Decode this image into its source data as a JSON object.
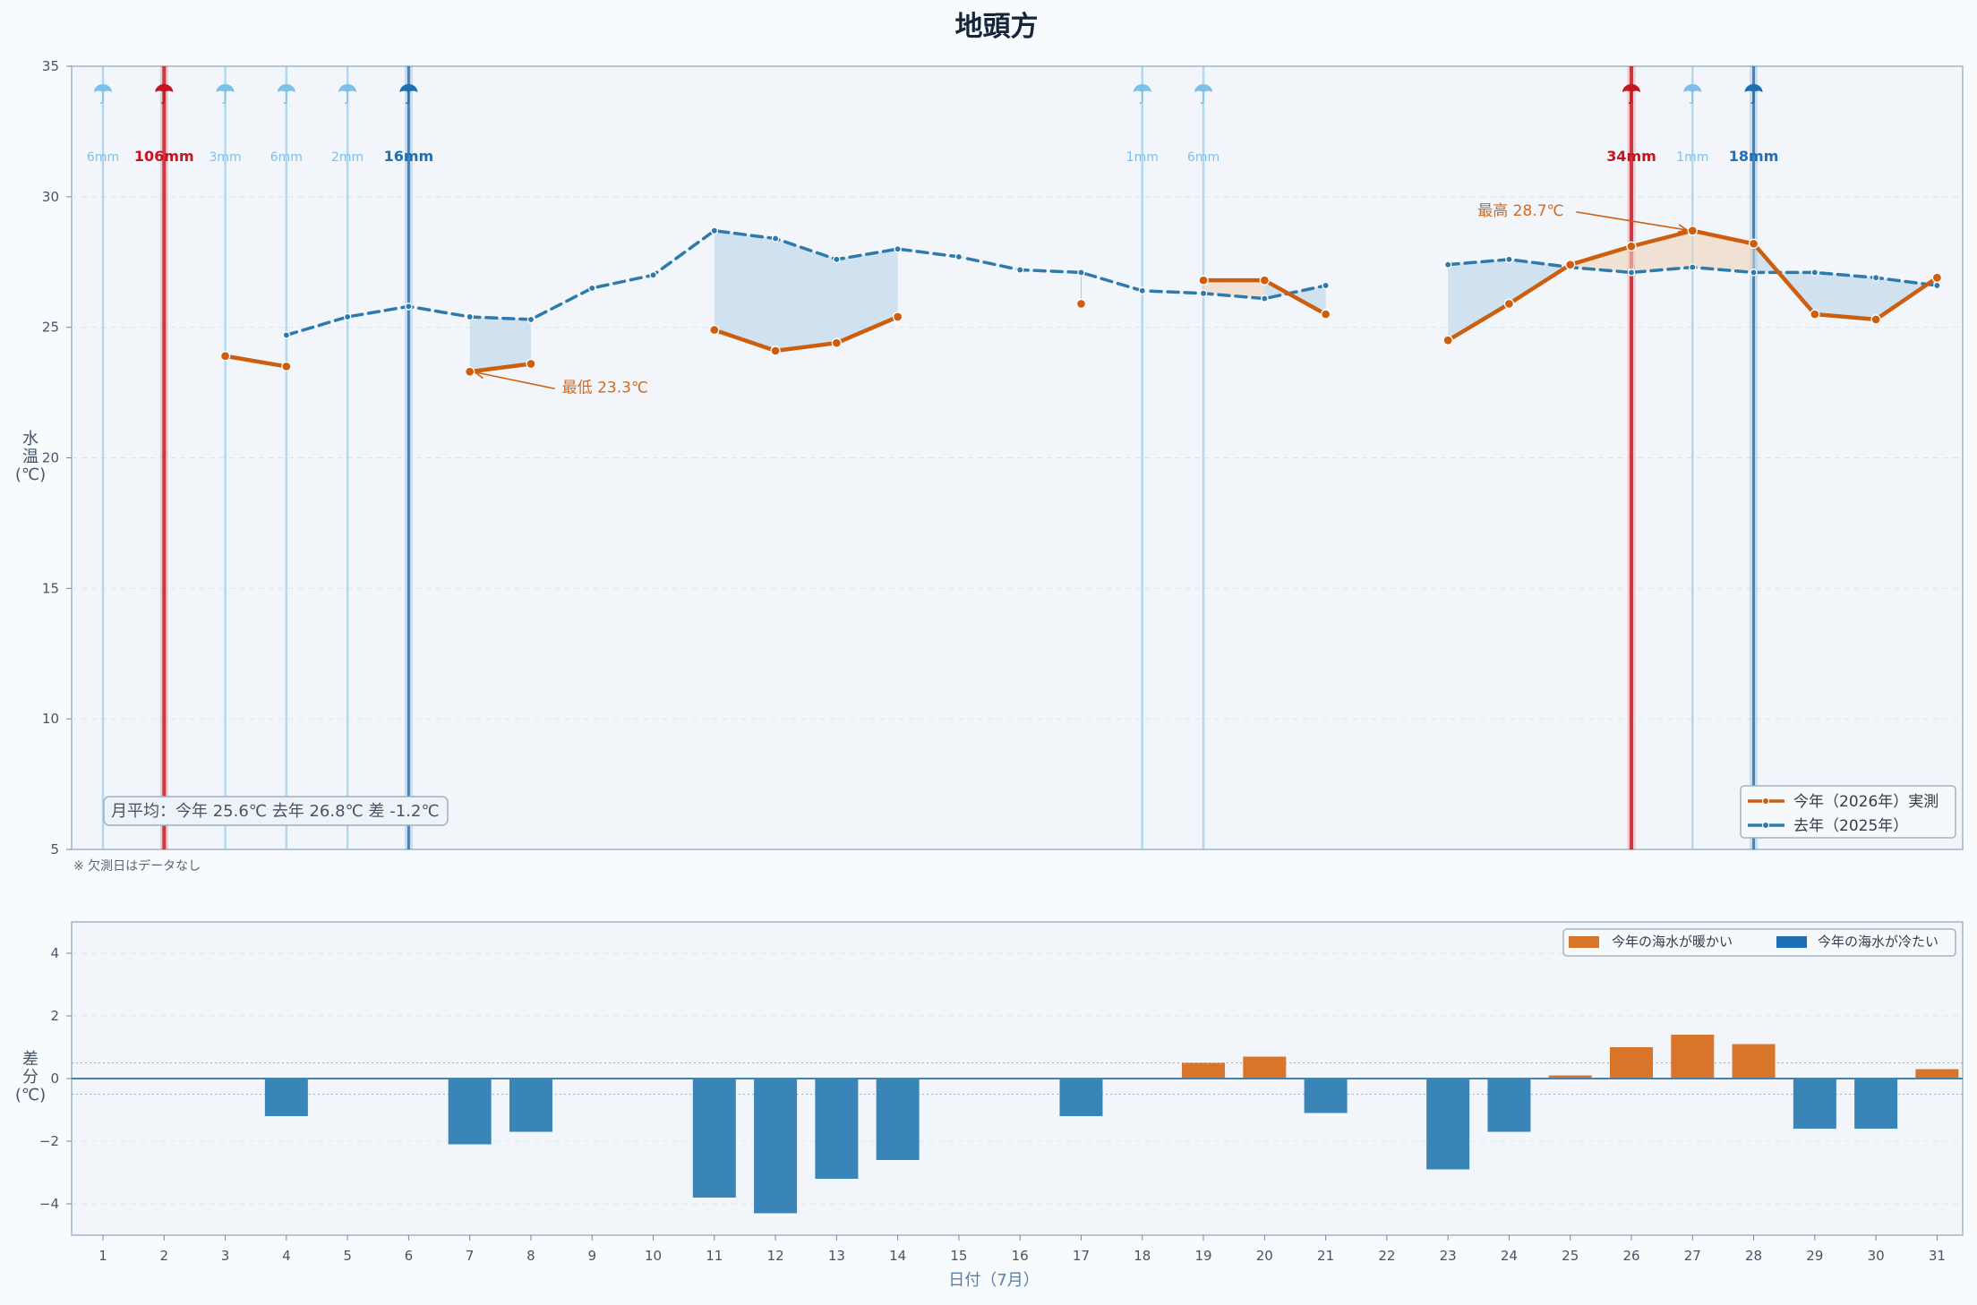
{
  "title": "地頭方",
  "colors": {
    "this_year": "#cc5e0e",
    "last_year": "#2e7aad",
    "diff_warm": "#d9752a",
    "diff_cold": "#3a85b8",
    "rain_light": "#7fc0ea",
    "rain_medium": "#1f6fb5",
    "rain_heavy": "#c7141e",
    "fill_cold": "#b9d4e8",
    "fill_warm": "#f0d3bd"
  },
  "chart_data": [
    {
      "type": "line",
      "title": "地頭方",
      "ylabel": "水温(℃)",
      "ylim": [
        5,
        35
      ],
      "yticks": [
        5,
        10,
        15,
        20,
        25,
        30,
        35
      ],
      "x": [
        1,
        2,
        3,
        4,
        5,
        6,
        7,
        8,
        9,
        10,
        11,
        12,
        13,
        14,
        15,
        16,
        17,
        18,
        19,
        20,
        21,
        22,
        23,
        24,
        25,
        26,
        27,
        28,
        29,
        30,
        31
      ],
      "series": [
        {
          "name": "今年（2026年）実測",
          "values": [
            null,
            null,
            23.9,
            23.5,
            null,
            null,
            23.3,
            23.6,
            null,
            null,
            24.9,
            24.1,
            24.4,
            25.4,
            null,
            null,
            25.9,
            null,
            26.8,
            26.8,
            25.5,
            null,
            24.5,
            25.9,
            27.4,
            28.1,
            28.7,
            28.2,
            25.5,
            25.3,
            26.9
          ]
        },
        {
          "name": "去年（2025年）",
          "values": [
            null,
            null,
            null,
            24.7,
            25.4,
            25.8,
            25.4,
            25.3,
            26.5,
            27.0,
            28.7,
            28.4,
            27.6,
            28.0,
            27.7,
            27.2,
            27.1,
            26.4,
            26.3,
            26.1,
            26.6,
            null,
            27.4,
            27.6,
            27.3,
            27.1,
            27.3,
            27.1,
            27.1,
            26.9,
            26.6
          ]
        }
      ],
      "rainfall": [
        {
          "day": 1,
          "label": "6mm",
          "level": "light"
        },
        {
          "day": 2,
          "label": "106mm",
          "level": "heavy"
        },
        {
          "day": 3,
          "label": "3mm",
          "level": "light"
        },
        {
          "day": 4,
          "label": "6mm",
          "level": "light"
        },
        {
          "day": 5,
          "label": "2mm",
          "level": "light"
        },
        {
          "day": 6,
          "label": "16mm",
          "level": "medium"
        },
        {
          "day": 18,
          "label": "1mm",
          "level": "light"
        },
        {
          "day": 19,
          "label": "6mm",
          "level": "light"
        },
        {
          "day": 26,
          "label": "34mm",
          "level": "heavy"
        },
        {
          "day": 27,
          "label": "1mm",
          "level": "light"
        },
        {
          "day": 28,
          "label": "18mm",
          "level": "medium"
        }
      ],
      "annotations": [
        {
          "text": "最高 28.7℃",
          "day": 27,
          "value": 28.7
        },
        {
          "text": "最低 23.3℃",
          "day": 7,
          "value": 23.3
        }
      ],
      "summary": "月平均：今年 25.6℃  去年 26.8℃  差 -1.2℃",
      "note": "※ 欠測日はデータなし",
      "legend_position": "bottom-right"
    },
    {
      "type": "bar",
      "ylabel": "差分(℃)",
      "ylim": [
        -5,
        5
      ],
      "yticks": [
        -4,
        -2,
        0,
        2,
        4
      ],
      "xlabel": "日付（7月）",
      "x": [
        1,
        2,
        3,
        4,
        5,
        6,
        7,
        8,
        9,
        10,
        11,
        12,
        13,
        14,
        15,
        16,
        17,
        18,
        19,
        20,
        21,
        22,
        23,
        24,
        25,
        26,
        27,
        28,
        29,
        30,
        31
      ],
      "values": [
        null,
        null,
        null,
        -1.2,
        null,
        null,
        -2.1,
        -1.7,
        null,
        null,
        -3.8,
        -4.3,
        -3.2,
        -2.6,
        null,
        null,
        -1.2,
        null,
        0.5,
        0.7,
        -1.1,
        null,
        -2.9,
        -1.7,
        0.1,
        1.0,
        1.4,
        1.1,
        -1.6,
        -1.6,
        0.3
      ],
      "legend": [
        {
          "label": "今年の海水が暖かい",
          "color": "#d9752a"
        },
        {
          "label": "今年の海水が冷たい",
          "color": "#1f6fb5"
        }
      ],
      "legend_position": "top-right"
    }
  ]
}
